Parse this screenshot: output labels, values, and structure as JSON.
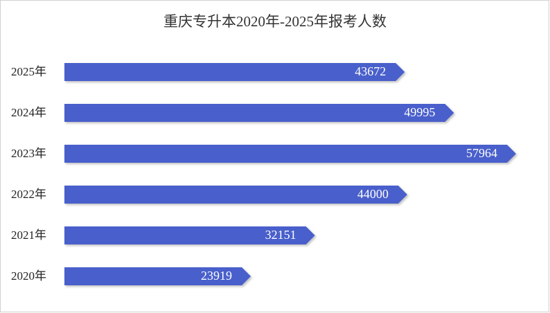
{
  "chart_data": {
    "type": "bar",
    "orientation": "horizontal",
    "title": "重庆专升本2020年-2025年报考人数",
    "categories": [
      "2025年",
      "2024年",
      "2023年",
      "2022年",
      "2021年",
      "2020年"
    ],
    "values": [
      43672,
      49995,
      57964,
      44000,
      32151,
      23919
    ],
    "color": "#4a5ecb"
  }
}
